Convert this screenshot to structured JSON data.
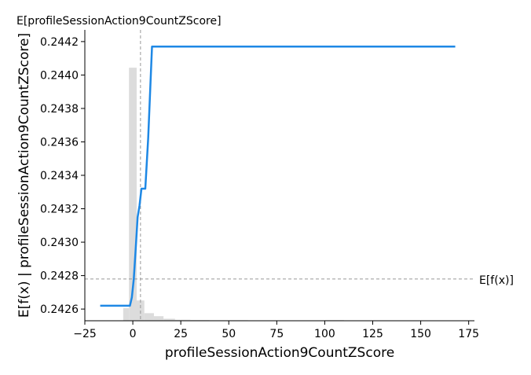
{
  "chart_data": {
    "type": "line",
    "top_label": "E[profileSessionAction9CountZScore]",
    "xlabel": "profileSessionAction9CountZScore",
    "ylabel": "E[f(x) | profileSessionAction9CountZScore]",
    "expected_value_label": "E[f(x)]",
    "xlim": [
      -25,
      178
    ],
    "ylim": [
      0.24253,
      0.24427
    ],
    "x_ticks": [
      -25,
      0,
      25,
      50,
      75,
      100,
      125,
      150,
      175
    ],
    "y_ticks": [
      0.2426,
      0.2428,
      0.243,
      0.2432,
      0.2434,
      0.2436,
      0.2438,
      0.244,
      0.2442
    ],
    "x_tick_labels": [
      "−25",
      "0",
      "25",
      "50",
      "75",
      "100",
      "125",
      "150",
      "175"
    ],
    "y_tick_labels": [
      "0.2426",
      "0.2428",
      "0.2430",
      "0.2432",
      "0.2434",
      "0.2436",
      "0.2438",
      "0.2440",
      "0.2442"
    ],
    "feature_expected_value": 4,
    "model_expected_value": 0.24278,
    "series": [
      {
        "x": [
          -17,
          -1.5,
          -0.5,
          0.5,
          1.5,
          2.5,
          3.5,
          4.5,
          5.5,
          6.5,
          8,
          10,
          168
        ],
        "y": [
          0.24262,
          0.24262,
          0.24267,
          0.24278,
          0.24296,
          0.24315,
          0.24322,
          0.24332,
          0.24332,
          0.24332,
          0.24362,
          0.24417,
          0.24417
        ],
        "color": "#1e88e5"
      }
    ],
    "histogram": {
      "bins": [
        {
          "x0": -5,
          "x1": -2,
          "count": 5
        },
        {
          "x0": -2,
          "x1": 2,
          "count": 100
        },
        {
          "x0": 2,
          "x1": 6,
          "count": 8
        },
        {
          "x0": 6,
          "x1": 11,
          "count": 3
        },
        {
          "x0": 11,
          "x1": 16,
          "count": 1.8
        },
        {
          "x0": 16,
          "x1": 22,
          "count": 0.8
        },
        {
          "x0": 22,
          "x1": 30,
          "count": 0.4
        },
        {
          "x0": 30,
          "x1": 40,
          "count": 0.3
        },
        {
          "x0": 40,
          "x1": 60,
          "count": 0.2
        },
        {
          "x0": 60,
          "x1": 100,
          "count": 0.15
        },
        {
          "x0": 100,
          "x1": 110,
          "count": 0.25
        },
        {
          "x0": 110,
          "x1": 150,
          "count": 0.1
        }
      ],
      "max_fraction_of_yrange": 0.87,
      "color": "#dcdcdc"
    },
    "grid": false,
    "reference_line_color": "#999999"
  }
}
